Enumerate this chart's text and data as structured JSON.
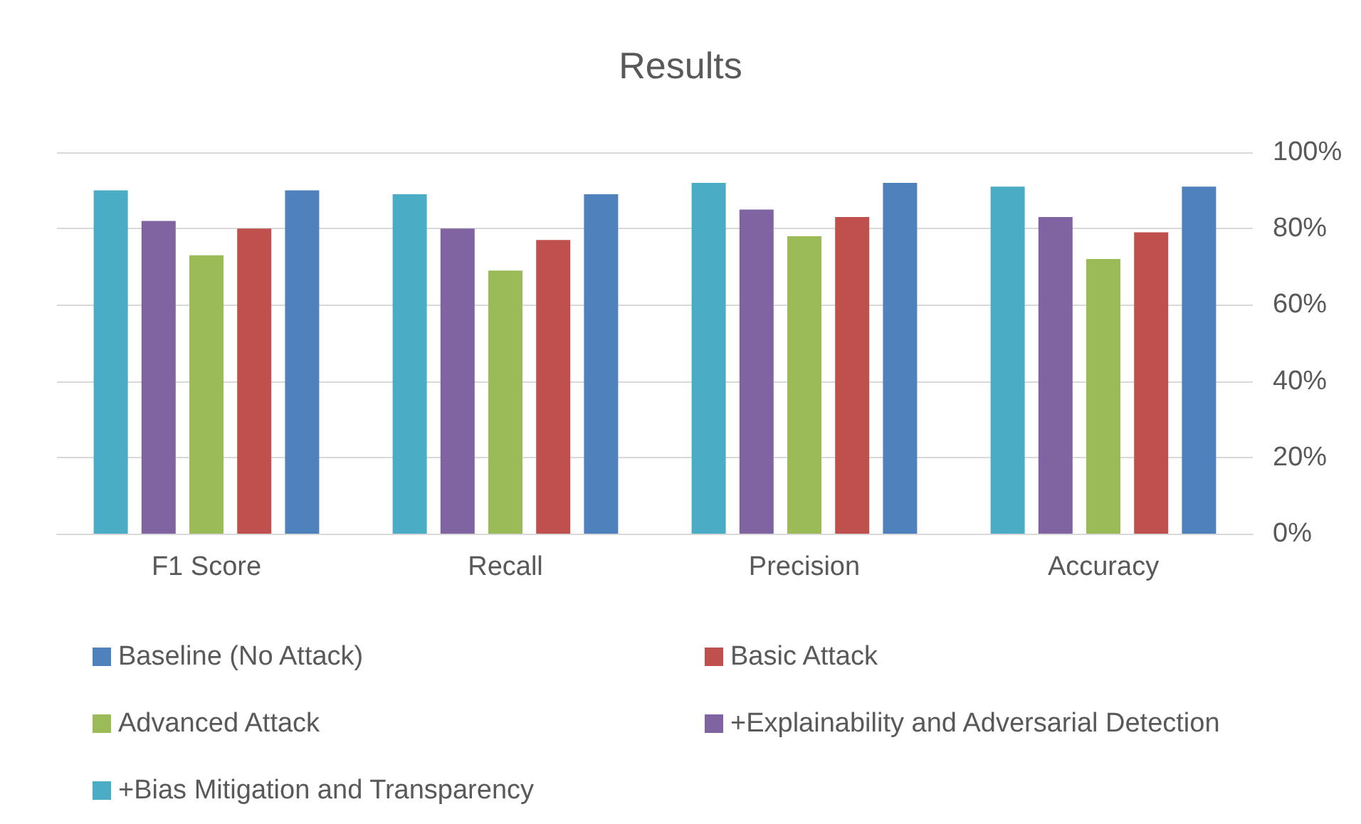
{
  "chart_data": {
    "type": "bar",
    "title": "Results",
    "categories": [
      "F1 Score",
      "Recall",
      "Precision",
      "Accuracy"
    ],
    "series": [
      {
        "name": "Baseline (No Attack)",
        "color": "#4f81bd",
        "values": [
          90,
          89,
          92,
          91
        ]
      },
      {
        "name": "Basic Attack",
        "color": "#c0504d",
        "values": [
          80,
          77,
          83,
          79
        ]
      },
      {
        "name": "Advanced Attack",
        "color": "#9bbb59",
        "values": [
          73,
          69,
          78,
          72
        ]
      },
      {
        "name": "+Explainability and Adversarial Detection",
        "color": "#8064a2",
        "values": [
          82,
          80,
          85,
          83
        ]
      },
      {
        "name": "+Bias Mitigation and Transparency",
        "color": "#4bacc6",
        "values": [
          90,
          89,
          92,
          91
        ]
      }
    ],
    "ylim": [
      0,
      100
    ],
    "yticks": [
      {
        "value": 0,
        "label": "0%"
      },
      {
        "value": 20,
        "label": "20%"
      },
      {
        "value": 40,
        "label": "40%"
      },
      {
        "value": 60,
        "label": "60%"
      },
      {
        "value": 80,
        "label": "80%"
      },
      {
        "value": 100,
        "label": "100%"
      }
    ],
    "grid": "y",
    "legend": "bottom"
  }
}
